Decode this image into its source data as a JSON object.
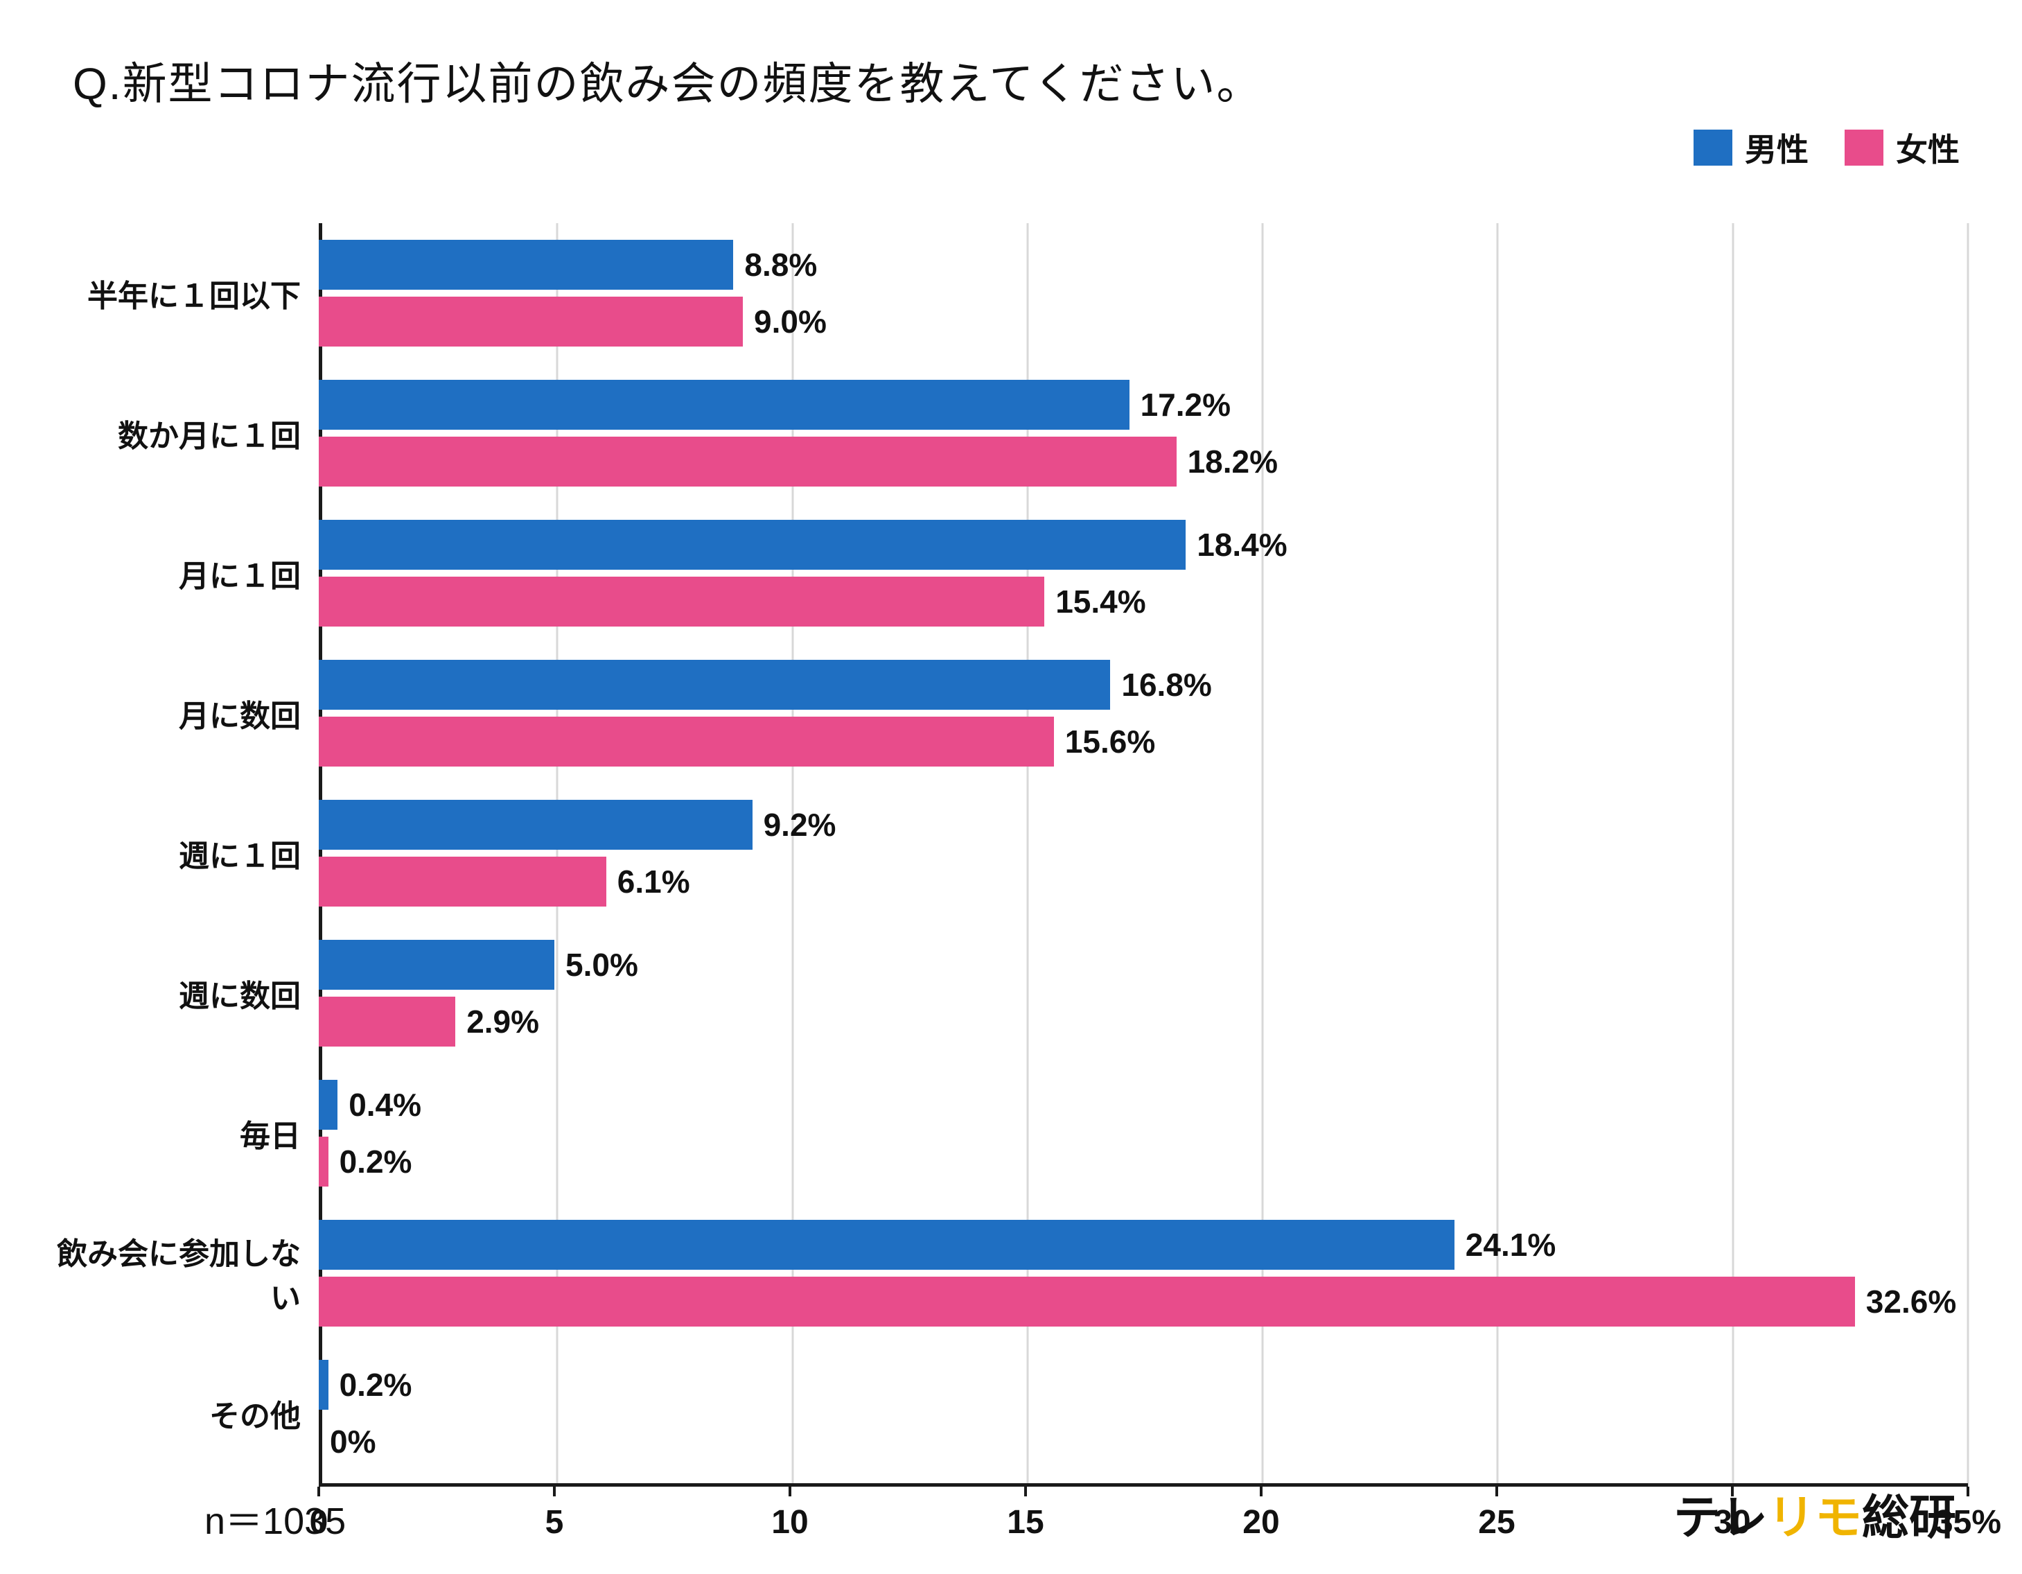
{
  "title": "Q.新型コロナ流行以前の飲み会の頻度を教えてください。",
  "legend": {
    "male": "男性",
    "female": "女性"
  },
  "footnote": "n＝1035",
  "logo": {
    "part1": "テレ",
    "part2": "リモ",
    "part3": "総研"
  },
  "colors": {
    "male": "#1f6fc2",
    "female": "#e84c8b",
    "logo_accent": "#f0b400",
    "gridline": "#d8d8d8",
    "axis": "#1a1a1a"
  },
  "chart_data": {
    "type": "bar",
    "orientation": "horizontal",
    "title": "Q.新型コロナ流行以前の飲み会の頻度を教えてください。",
    "categories": [
      "半年に１回以下",
      "数か月に１回",
      "月に１回",
      "月に数回",
      "週に１回",
      "週に数回",
      "毎日",
      "飲み会に参加しない",
      "その他"
    ],
    "series": [
      {
        "name": "男性",
        "color": "#1f6fc2",
        "values": [
          8.8,
          17.2,
          18.4,
          16.8,
          9.2,
          5.0,
          0.4,
          24.1,
          0.2
        ],
        "labels": [
          "8.8%",
          "17.2%",
          "18.4%",
          "16.8%",
          "9.2%",
          "5.0%",
          "0.4%",
          "24.1%",
          "0.2%"
        ]
      },
      {
        "name": "女性",
        "color": "#e84c8b",
        "values": [
          9.0,
          18.2,
          15.4,
          15.6,
          6.1,
          2.9,
          0.2,
          32.6,
          0
        ],
        "labels": [
          "9.0%",
          "18.2%",
          "15.4%",
          "15.6%",
          "6.1%",
          "2.9%",
          "0.2%",
          "32.6%",
          "0%"
        ]
      }
    ],
    "xlabel": "",
    "ylabel": "",
    "xlim": [
      0,
      35
    ],
    "xticks": [
      0,
      5,
      10,
      15,
      20,
      25,
      30,
      35
    ],
    "xtick_labels": [
      "0",
      "5",
      "10",
      "15",
      "20",
      "25",
      "30",
      "35%"
    ],
    "grid": true,
    "legend_position": "top-right",
    "sample_size": "n＝1035"
  }
}
